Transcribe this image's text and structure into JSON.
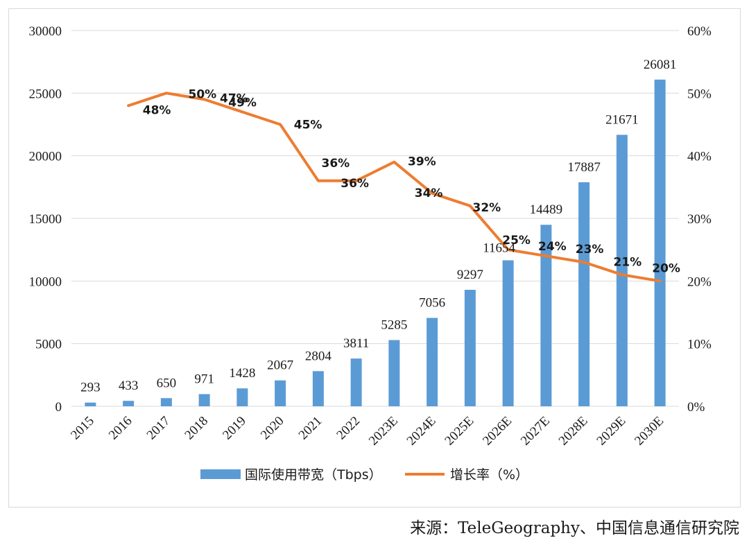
{
  "chart_data": {
    "type": "bar+line",
    "categories": [
      "2015",
      "2016",
      "2017",
      "2018",
      "2019",
      "2020",
      "2021",
      "2022",
      "2023E",
      "2024E",
      "2025E",
      "2026E",
      "2027E",
      "2028E",
      "2029E",
      "2030E"
    ],
    "series": [
      {
        "name": "国际使用带宽（Tbps）",
        "type": "bar",
        "axis": "left",
        "color": "#5b9bd5",
        "values": [
          293,
          433,
          650,
          971,
          1428,
          2067,
          2804,
          3811,
          5285,
          7056,
          9297,
          11654,
          14489,
          17887,
          21671,
          26081
        ]
      },
      {
        "name": "增长率（%）",
        "type": "line",
        "axis": "right",
        "color": "#ed7d31",
        "values": [
          null,
          48,
          50,
          49,
          47,
          45,
          36,
          36,
          39,
          34,
          32,
          25,
          24,
          23,
          21,
          20
        ],
        "labels": [
          "",
          "48%",
          "50%",
          "49%",
          "47%",
          "45%",
          "36%",
          "36%",
          "39%",
          "34%",
          "32%",
          "25%",
          "24%",
          "23%",
          "21%",
          "20%"
        ]
      }
    ],
    "y_left": {
      "min": 0,
      "max": 30000,
      "ticks": [
        "0",
        "5000",
        "10000",
        "15000",
        "20000",
        "25000",
        "30000"
      ]
    },
    "y_right": {
      "min": 0,
      "max": 60,
      "ticks": [
        "0%",
        "10%",
        "20%",
        "30%",
        "40%",
        "50%",
        "60%"
      ]
    },
    "grid": true,
    "legend_position": "bottom"
  },
  "source": "来源：TeleGeography、中国信息通信研究院"
}
